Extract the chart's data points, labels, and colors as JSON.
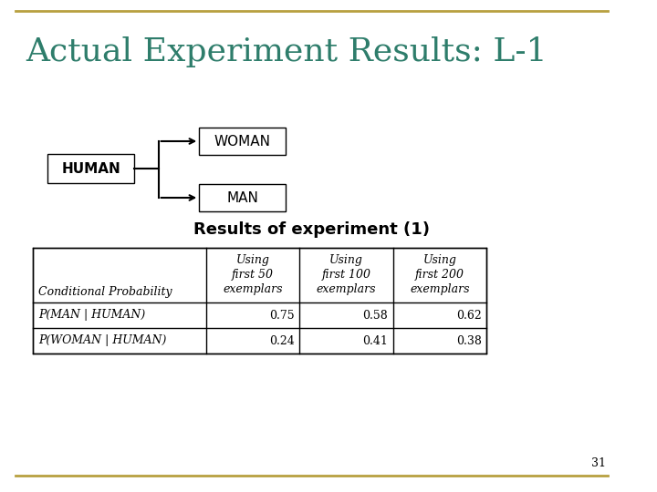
{
  "title": "Actual Experiment Results: L-1",
  "title_color": "#2E7D6B",
  "background_color": "#FFFFFF",
  "border_color": "#B8A040",
  "page_number": "31",
  "diagram": {
    "human_label": "HUMAN",
    "woman_label": "WOMAN",
    "man_label": "MAN"
  },
  "table_title": "Results of experiment (1)",
  "table_headers": [
    "Conditional Probability",
    "Using\nfirst 50\nexemplars",
    "Using\nfirst 100\nexemplars",
    "Using\nfirst 200\nexemplars"
  ],
  "table_rows": [
    [
      "P(MAN | HUMAN)",
      "0.75",
      "0.58",
      "0.62"
    ],
    [
      "P(WOMAN | HUMAN)",
      "0.24",
      "0.41",
      "0.38"
    ]
  ]
}
